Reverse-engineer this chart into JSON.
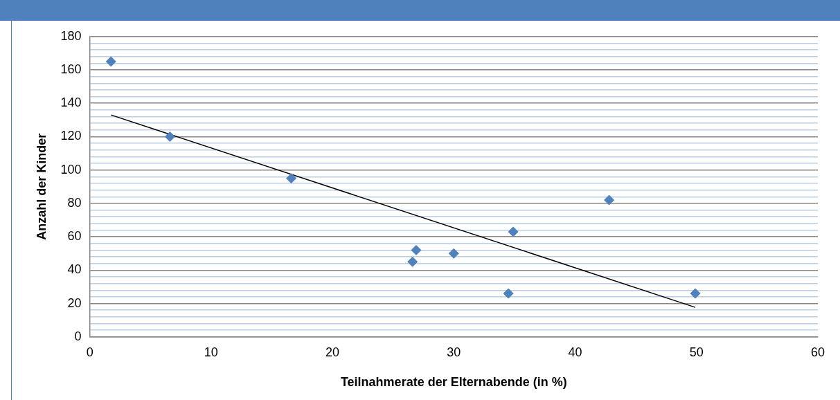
{
  "chart_data": {
    "type": "scatter",
    "xlabel": "Teilnahmerate der Elternabende (in %)",
    "ylabel": "Anzahl der Kinder",
    "xlim": [
      0,
      60
    ],
    "xticks": [
      0,
      10,
      20,
      30,
      40,
      50,
      60
    ],
    "ylim": [
      0,
      180
    ],
    "yticks": [
      0,
      {
        "value": 4,
        "label": null
      },
      {
        "value": 8,
        "label": null
      },
      {
        "value": 12,
        "label": null
      },
      {
        "value": 16,
        "label": null
      },
      20,
      {
        "value": 24,
        "label": null
      },
      {
        "value": 28,
        "label": null
      },
      {
        "value": 32,
        "label": null
      },
      {
        "value": 36,
        "label": null
      },
      40,
      {
        "value": 44,
        "label": null
      },
      {
        "value": 48,
        "label": null
      },
      {
        "value": 52,
        "label": null
      },
      {
        "value": 56,
        "label": null
      },
      60,
      {
        "value": 64,
        "label": null
      },
      {
        "value": 68,
        "label": null
      },
      {
        "value": 72,
        "label": null
      },
      {
        "value": 76,
        "label": null
      },
      80,
      {
        "value": 84,
        "label": null
      },
      {
        "value": 88,
        "label": null
      },
      {
        "value": 92,
        "label": null
      },
      {
        "value": 96,
        "label": null
      },
      100,
      {
        "value": 104,
        "label": null
      },
      {
        "value": 108,
        "label": null
      },
      {
        "value": 112,
        "label": null
      },
      {
        "value": 116,
        "label": null
      },
      120,
      {
        "value": 124,
        "label": null
      },
      {
        "value": 128,
        "label": null
      },
      {
        "value": 132,
        "label": null
      },
      {
        "value": 136,
        "label": null
      },
      140,
      {
        "value": 144,
        "label": null
      },
      {
        "value": 148,
        "label": null
      },
      {
        "value": 152,
        "label": null
      },
      {
        "value": 156,
        "label": null
      },
      160,
      {
        "value": 164,
        "label": null
      },
      {
        "value": 168,
        "label": null
      },
      {
        "value": 172,
        "label": null
      },
      {
        "value": 176,
        "label": null
      },
      180
    ],
    "grid": "y",
    "legend": false,
    "marker": "diamond",
    "series": [
      {
        "type": "scatter",
        "color": "#4f81bd",
        "x": [
          1.75,
          6.6,
          16.6,
          26.6,
          26.9,
          30,
          34.5,
          34.9,
          42.8,
          49.9
        ],
        "values": [
          165,
          120,
          95,
          45,
          52,
          50,
          26,
          63,
          82,
          26
        ]
      },
      {
        "type": "line",
        "color": "#000000",
        "x": [
          1.75,
          49.9
        ],
        "values": [
          133,
          17.7
        ],
        "marker": "none",
        "line_style": "solid"
      }
    ]
  }
}
